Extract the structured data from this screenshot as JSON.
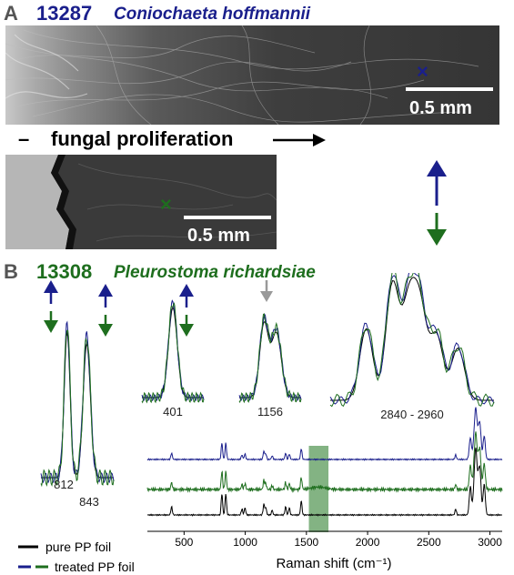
{
  "panel_a": {
    "letter": "A",
    "strain_id": "13287",
    "species": "Coniochaeta hoffmannii",
    "scale_label": "0.5 mm",
    "marker_symbol": "×",
    "color": "#1a1f8c"
  },
  "proliferation_label": "fungal proliferation",
  "proliferation_dash": "–",
  "sem_lower": {
    "scale_label": "0.5 mm",
    "marker_symbol": "×",
    "color": "#1e6e1e"
  },
  "panel_b": {
    "letter": "B",
    "strain_id": "13308",
    "species": "Pleurostoma richardsiae",
    "color": "#1e6e1e"
  },
  "chart_data": {
    "type": "line",
    "xlabel": "Raman shift (cm⁻¹)",
    "x_ticks": [
      500,
      1000,
      1500,
      2000,
      2500,
      3000
    ],
    "xlim": [
      200,
      3100
    ],
    "series": [
      {
        "name": "pure PP foil",
        "color": "#000000"
      },
      {
        "name": "treated PP foil",
        "color": "#1a1f8c"
      },
      {
        "name": "treated PP foil",
        "color": "#1e6e1e"
      }
    ],
    "peaks": [
      398,
      809,
      841,
      973,
      998,
      1152,
      1168,
      1220,
      1330,
      1360,
      1458,
      2720,
      2840,
      2870,
      2885,
      2905,
      2920,
      2953
    ],
    "highlight_range": [
      1520,
      1680
    ],
    "inset_labels": [
      "812",
      "843",
      "401",
      "1156",
      "2840 - 2960"
    ]
  },
  "legend": {
    "pure": "pure PP foil",
    "treated": "treated PP foil",
    "pure_color": "#000000",
    "treated_blue": "#1a1f8c",
    "treated_green": "#1e6e1e"
  }
}
